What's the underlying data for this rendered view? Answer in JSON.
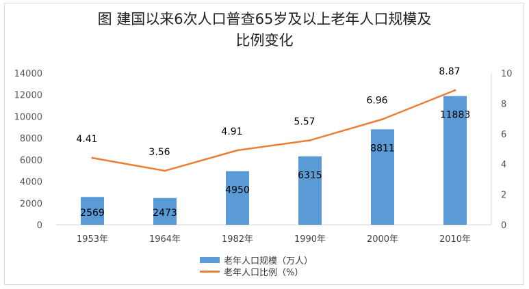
{
  "title_line1": "图  建国以来6次人口普查65岁及以上老年人口规模及",
  "title_line2": "比例变化",
  "colors": {
    "bar": "#5b9bd5",
    "line": "#ed7d31",
    "grid": "#d9d9d9"
  },
  "chart_data": {
    "type": "bar+line",
    "categories": [
      "1953年",
      "1964年",
      "1982年",
      "1990年",
      "2000年",
      "2010年"
    ],
    "series": [
      {
        "name": "老年人口规模（万人）",
        "type": "bar",
        "axis": "left",
        "values": [
          2569,
          2473,
          4950,
          6315,
          8811,
          11883
        ]
      },
      {
        "name": "老年人口比例（%）",
        "type": "line",
        "axis": "right",
        "values": [
          4.41,
          3.56,
          4.91,
          5.57,
          6.96,
          8.87
        ]
      }
    ],
    "y_left": {
      "ylim": [
        0,
        14000
      ],
      "ticks": [
        0,
        2000,
        4000,
        6000,
        8000,
        10000,
        12000,
        14000
      ]
    },
    "y_right": {
      "ylim": [
        0,
        10
      ],
      "ticks": [
        0,
        2,
        4,
        6,
        8,
        10
      ]
    },
    "grid": false,
    "legend_position": "bottom-center"
  }
}
